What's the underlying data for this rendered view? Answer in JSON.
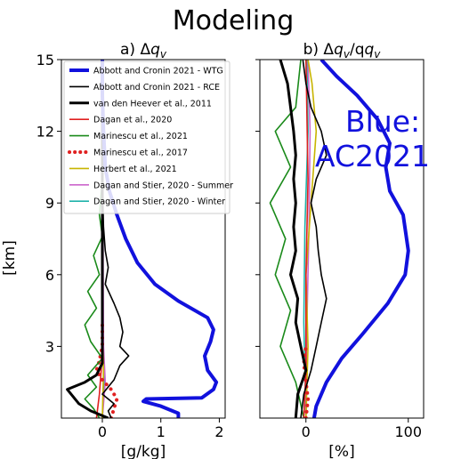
{
  "figure": {
    "title": "Modeling",
    "ylabel": "[km]",
    "annotation": "Blue:\nAC2021",
    "annotation_color": "#1111dd"
  },
  "legend": [
    {
      "name": "Abbott and Cronin 2021 - WTG",
      "color": "#1111dd",
      "style": "solid",
      "width": 4
    },
    {
      "name": "Abbott and Cronin 2021 - RCE",
      "color": "#000000",
      "style": "solid",
      "width": 1.6
    },
    {
      "name": "van den Heever et al., 2011",
      "color": "#000000",
      "style": "solid",
      "width": 3
    },
    {
      "name": "Dagan et al., 2020",
      "color": "#e02020",
      "style": "solid",
      "width": 1.6
    },
    {
      "name": "Marinescu et al., 2021",
      "color": "#1a8a1a",
      "style": "solid",
      "width": 1.6
    },
    {
      "name": "Marinescu et al., 2017",
      "color": "#e02020",
      "style": "dotted",
      "width": 4
    },
    {
      "name": "Herbert et al., 2021",
      "color": "#c8b400",
      "style": "solid",
      "width": 1.6
    },
    {
      "name": "Dagan and Stier, 2020 - Summer",
      "color": "#cc66cc",
      "style": "solid",
      "width": 1.6
    },
    {
      "name": "Dagan and Stier, 2020 - Winter",
      "color": "#20b2aa",
      "style": "solid",
      "width": 1.6
    }
  ],
  "chart_data": [
    {
      "type": "line",
      "title": "a) Δq_v",
      "title_prefix": "a) Δ",
      "title_var": "q",
      "title_sub": "v",
      "title_suffix": "",
      "xlabel": "[g/kg]",
      "ylabel": "[km]",
      "xlim": [
        -0.7,
        2.1
      ],
      "ylim": [
        0,
        15
      ],
      "xticks": [
        0,
        1,
        2
      ],
      "xtick_labels": [
        "0",
        "1",
        "2"
      ],
      "yticks": [
        3,
        6,
        9,
        12,
        15
      ],
      "ytick_labels": [
        "3",
        "6",
        "9",
        "12",
        "15"
      ],
      "series": [
        {
          "name": "Abbott and Cronin 2021 - WTG",
          "points": [
            [
              1.3,
              0.0
            ],
            [
              1.3,
              0.2
            ],
            [
              1.0,
              0.5
            ],
            [
              0.7,
              0.7
            ],
            [
              0.75,
              0.8
            ],
            [
              1.7,
              0.85
            ],
            [
              1.9,
              1.2
            ],
            [
              1.95,
              1.5
            ],
            [
              1.8,
              2.0
            ],
            [
              1.75,
              2.6
            ],
            [
              1.85,
              3.2
            ],
            [
              1.9,
              3.7
            ],
            [
              1.8,
              4.2
            ],
            [
              1.3,
              4.9
            ],
            [
              0.9,
              5.6
            ],
            [
              0.6,
              6.5
            ],
            [
              0.4,
              7.5
            ],
            [
              0.25,
              8.5
            ],
            [
              0.12,
              9.5
            ],
            [
              0.05,
              10.5
            ],
            [
              0.02,
              12.0
            ],
            [
              0.0,
              13.5
            ],
            [
              0.0,
              15.0
            ]
          ]
        },
        {
          "name": "Abbott and Cronin 2021 - RCE",
          "points": [
            [
              0.15,
              0.0
            ],
            [
              0.1,
              0.3
            ],
            [
              0.2,
              0.6
            ],
            [
              0.0,
              1.0
            ],
            [
              0.2,
              1.6
            ],
            [
              0.3,
              2.2
            ],
            [
              0.45,
              2.6
            ],
            [
              0.3,
              3.0
            ],
            [
              0.35,
              3.6
            ],
            [
              0.3,
              4.2
            ],
            [
              0.2,
              4.8
            ],
            [
              0.05,
              5.6
            ],
            [
              0.1,
              6.3
            ],
            [
              0.05,
              7.0
            ],
            [
              0.02,
              8.0
            ],
            [
              0.0,
              10.0
            ],
            [
              0.0,
              15.0
            ]
          ]
        },
        {
          "name": "van den Heever et al., 2011",
          "points": [
            [
              0.1,
              0.0
            ],
            [
              -0.2,
              0.3
            ],
            [
              -0.4,
              0.6
            ],
            [
              -0.5,
              0.9
            ],
            [
              -0.6,
              1.2
            ],
            [
              -0.3,
              1.5
            ],
            [
              -0.1,
              1.8
            ],
            [
              0.0,
              2.3
            ],
            [
              0.0,
              15.0
            ]
          ]
        },
        {
          "name": "Dagan et al., 2020",
          "points": [
            [
              -0.1,
              0.0
            ],
            [
              -0.05,
              1.0
            ],
            [
              -0.02,
              2.0
            ],
            [
              0.0,
              3.5
            ],
            [
              0.0,
              15.0
            ]
          ]
        },
        {
          "name": "Marinescu et al., 2021",
          "points": [
            [
              -0.05,
              0.0
            ],
            [
              -0.15,
              0.4
            ],
            [
              -0.3,
              0.8
            ],
            [
              -0.1,
              1.3
            ],
            [
              -0.25,
              1.8
            ],
            [
              0.0,
              2.5
            ],
            [
              -0.2,
              3.2
            ],
            [
              -0.3,
              3.9
            ],
            [
              -0.1,
              4.6
            ],
            [
              -0.25,
              5.3
            ],
            [
              -0.05,
              6.0
            ],
            [
              -0.15,
              6.8
            ],
            [
              0.0,
              7.6
            ],
            [
              -0.05,
              8.5
            ],
            [
              0.0,
              10.0
            ],
            [
              0.0,
              15.0
            ]
          ]
        },
        {
          "name": "Marinescu et al., 2017",
          "points": [
            [
              0.15,
              0.0
            ],
            [
              0.2,
              0.4
            ],
            [
              0.25,
              0.8
            ],
            [
              0.15,
              1.2
            ],
            [
              0.0,
              1.6
            ],
            [
              -0.1,
              2.0
            ],
            [
              -0.05,
              2.4
            ],
            [
              0.0,
              3.0
            ],
            [
              0.0,
              4.0
            ]
          ]
        },
        {
          "name": "Herbert et al., 2021",
          "points": [
            [
              0.0,
              0.0
            ],
            [
              0.02,
              2.0
            ],
            [
              0.0,
              4.0
            ],
            [
              0.0,
              15.0
            ]
          ]
        },
        {
          "name": "Dagan and Stier, 2020 - Summer",
          "points": [
            [
              0.0,
              0.0
            ],
            [
              0.05,
              1.5
            ],
            [
              0.02,
              3.0
            ],
            [
              0.0,
              15.0
            ]
          ]
        },
        {
          "name": "Dagan and Stier, 2020 - Winter",
          "points": [
            [
              0.0,
              0.0
            ],
            [
              0.03,
              1.5
            ],
            [
              0.0,
              3.0
            ],
            [
              0.0,
              15.0
            ]
          ]
        }
      ]
    },
    {
      "type": "line",
      "title": "b) Δq_v/q_v",
      "title_prefix": "b) Δ",
      "title_var": "q",
      "title_sub": "v",
      "title_suffix": "/q",
      "title_sub2": "v",
      "xlabel": "[%]",
      "ylabel": "",
      "xlim": [
        -45,
        115
      ],
      "ylim": [
        0,
        15
      ],
      "xticks": [
        0,
        100
      ],
      "xtick_labels": [
        "0",
        "100"
      ],
      "yticks": [
        3,
        6,
        9,
        12,
        15
      ],
      "ytick_labels": [],
      "series": [
        {
          "name": "Abbott and Cronin 2021 - WTG",
          "points": [
            [
              8,
              0.0
            ],
            [
              10,
              0.5
            ],
            [
              20,
              1.5
            ],
            [
              35,
              2.5
            ],
            [
              55,
              3.5
            ],
            [
              80,
              4.8
            ],
            [
              97,
              6.0
            ],
            [
              100,
              7.0
            ],
            [
              95,
              8.5
            ],
            [
              82,
              9.5
            ],
            [
              78,
              10.5
            ],
            [
              82,
              11.5
            ],
            [
              70,
              12.5
            ],
            [
              50,
              13.5
            ],
            [
              30,
              14.3
            ],
            [
              15,
              15.0
            ]
          ]
        },
        {
          "name": "Abbott and Cronin 2021 - RCE",
          "points": [
            [
              -5,
              0.0
            ],
            [
              -2,
              1.0
            ],
            [
              5,
              2.0
            ],
            [
              10,
              3.0
            ],
            [
              15,
              4.0
            ],
            [
              20,
              5.0
            ],
            [
              15,
              6.0
            ],
            [
              12,
              7.0
            ],
            [
              10,
              8.0
            ],
            [
              5,
              9.0
            ],
            [
              10,
              10.0
            ],
            [
              20,
              11.0
            ],
            [
              15,
              12.0
            ],
            [
              5,
              13.0
            ],
            [
              0,
              14.0
            ],
            [
              -3,
              15.0
            ]
          ]
        },
        {
          "name": "van den Heever et al., 2011",
          "points": [
            [
              -10,
              0.0
            ],
            [
              -8,
              1.0
            ],
            [
              0,
              2.0
            ],
            [
              -5,
              3.0
            ],
            [
              -10,
              4.0
            ],
            [
              -8,
              5.0
            ],
            [
              -15,
              6.0
            ],
            [
              -10,
              7.0
            ],
            [
              -12,
              8.0
            ],
            [
              -10,
              9.0
            ],
            [
              -12,
              10.0
            ],
            [
              -10,
              11.0
            ],
            [
              -12,
              12.0
            ],
            [
              -15,
              13.0
            ],
            [
              -18,
              14.0
            ],
            [
              -25,
              15.0
            ]
          ]
        },
        {
          "name": "Dagan et al., 2020",
          "points": [
            [
              -2,
              0.0
            ],
            [
              0,
              2.0
            ],
            [
              0,
              6.0
            ],
            [
              2,
              10.0
            ],
            [
              0,
              15.0
            ]
          ]
        },
        {
          "name": "Marinescu et al., 2021",
          "points": [
            [
              -2,
              0.0
            ],
            [
              -10,
              1.5
            ],
            [
              -25,
              3.0
            ],
            [
              -15,
              4.5
            ],
            [
              -30,
              6.0
            ],
            [
              -20,
              7.5
            ],
            [
              -35,
              9.0
            ],
            [
              -15,
              10.5
            ],
            [
              -30,
              12.0
            ],
            [
              -10,
              13.0
            ],
            [
              -5,
              15.0
            ]
          ]
        },
        {
          "name": "Marinescu et al., 2017",
          "points": [
            [
              0,
              0.0
            ],
            [
              2,
              0.8
            ],
            [
              0,
              1.5
            ],
            [
              -2,
              2.3
            ],
            [
              0,
              3.0
            ]
          ]
        },
        {
          "name": "Herbert et al., 2021",
          "points": [
            [
              0,
              0.0
            ],
            [
              2,
              3.0
            ],
            [
              0,
              6.0
            ],
            [
              5,
              9.0
            ],
            [
              10,
              12.0
            ],
            [
              6,
              14.0
            ],
            [
              2,
              15.0
            ]
          ]
        },
        {
          "name": "Dagan and Stier, 2020 - Summer",
          "points": [
            [
              0,
              0.0
            ],
            [
              1,
              4.0
            ],
            [
              3,
              8.0
            ],
            [
              4,
              12.0
            ],
            [
              2,
              15.0
            ]
          ]
        },
        {
          "name": "Dagan and Stier, 2020 - Winter",
          "points": [
            [
              0,
              0.0
            ],
            [
              -2,
              4.0
            ],
            [
              -1,
              8.0
            ],
            [
              2,
              12.0
            ],
            [
              1,
              15.0
            ]
          ]
        }
      ]
    }
  ]
}
